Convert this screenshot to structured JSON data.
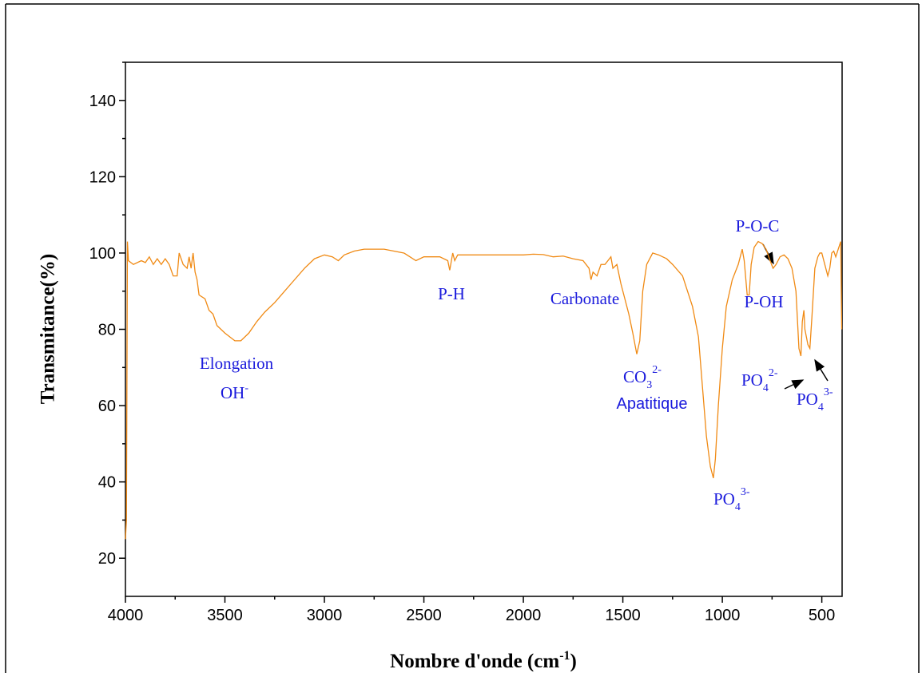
{
  "chart_data": {
    "type": "line",
    "xlabel": [
      "Nombre d'onde (cm",
      "-1",
      ")"
    ],
    "ylabel": "Transmitance(%)",
    "color": "#f08a14",
    "xlim": [
      4000,
      398
    ],
    "ylim": [
      10,
      150
    ],
    "xticks": [
      4000,
      3500,
      3000,
      2500,
      2000,
      1500,
      1000,
      500
    ],
    "yticks": [
      20,
      40,
      60,
      80,
      100,
      120,
      140
    ],
    "xminorticks": [
      3750,
      3250,
      2750,
      2250,
      1750,
      1250,
      750
    ],
    "yminorticks": [
      30,
      50,
      70,
      90,
      110,
      130,
      150
    ],
    "annotations": [
      {
        "text": "Elongation"
      },
      {
        "text": "OH",
        "sup": "-"
      },
      {
        "text": "P-H"
      },
      {
        "text": "Carbonate"
      },
      {
        "text": "CO",
        "sub": "3",
        "sup": "2-"
      },
      {
        "text": "Apatitique"
      },
      {
        "text": "PO",
        "sub": "4",
        "sup": "3-"
      },
      {
        "text": "P-O-C"
      },
      {
        "text": "P-OH"
      },
      {
        "text": "PO",
        "sub": "4",
        "sup": "2-"
      },
      {
        "text": "PO",
        "sub": "4",
        "sup": "3-"
      }
    ],
    "x": [
      4000,
      3995,
      3990,
      3985,
      3960,
      3920,
      3900,
      3880,
      3860,
      3840,
      3820,
      3800,
      3780,
      3760,
      3740,
      3730,
      3710,
      3690,
      3680,
      3670,
      3660,
      3650,
      3640,
      3630,
      3600,
      3580,
      3560,
      3540,
      3500,
      3450,
      3420,
      3380,
      3340,
      3300,
      3250,
      3200,
      3150,
      3100,
      3050,
      3000,
      2960,
      2930,
      2900,
      2850,
      2800,
      2700,
      2600,
      2540,
      2500,
      2420,
      2380,
      2370,
      2355,
      2345,
      2330,
      2200,
      2100,
      2000,
      1950,
      1900,
      1850,
      1800,
      1750,
      1700,
      1670,
      1660,
      1650,
      1630,
      1610,
      1590,
      1560,
      1550,
      1530,
      1510,
      1490,
      1470,
      1450,
      1430,
      1415,
      1400,
      1380,
      1350,
      1320,
      1280,
      1250,
      1200,
      1150,
      1120,
      1100,
      1080,
      1060,
      1045,
      1035,
      1020,
      1000,
      980,
      950,
      920,
      900,
      890,
      875,
      865,
      855,
      840,
      820,
      800,
      780,
      760,
      745,
      730,
      710,
      690,
      670,
      650,
      630,
      615,
      605,
      598,
      590,
      585,
      570,
      560,
      550,
      535,
      520,
      510,
      500,
      490,
      470,
      460,
      450,
      440,
      430,
      405,
      400
    ],
    "values": [
      25,
      30,
      103,
      98,
      97,
      98,
      97.5,
      99,
      97,
      98.5,
      97,
      98.5,
      97,
      94,
      94,
      100,
      97,
      96,
      99,
      96,
      100,
      95,
      93,
      89,
      88,
      85,
      84,
      81,
      79,
      77,
      77,
      79,
      82,
      84.5,
      87,
      90,
      93,
      96,
      98.5,
      99.5,
      99,
      98,
      99.5,
      100.5,
      101,
      101,
      100,
      98,
      99,
      99,
      98,
      95.5,
      100,
      98,
      99.5,
      99.5,
      99.5,
      99.5,
      99.7,
      99.6,
      99,
      99.2,
      98.5,
      98,
      96,
      93,
      95,
      94,
      97,
      97,
      99,
      96,
      97,
      92,
      88,
      84,
      79,
      73.5,
      77,
      90,
      97,
      100,
      99.5,
      98.5,
      97,
      94,
      86,
      78,
      65,
      52,
      44,
      41,
      46,
      60,
      75,
      86,
      93,
      97,
      101,
      98,
      89,
      89,
      97,
      101.5,
      103,
      102.5,
      101,
      98,
      96,
      97,
      99,
      99.5,
      98.5,
      96,
      90,
      75,
      73,
      82,
      85,
      80,
      76,
      75,
      83,
      96,
      99,
      100,
      100,
      98,
      94,
      96,
      100,
      100.5,
      99,
      103,
      80
    ]
  }
}
